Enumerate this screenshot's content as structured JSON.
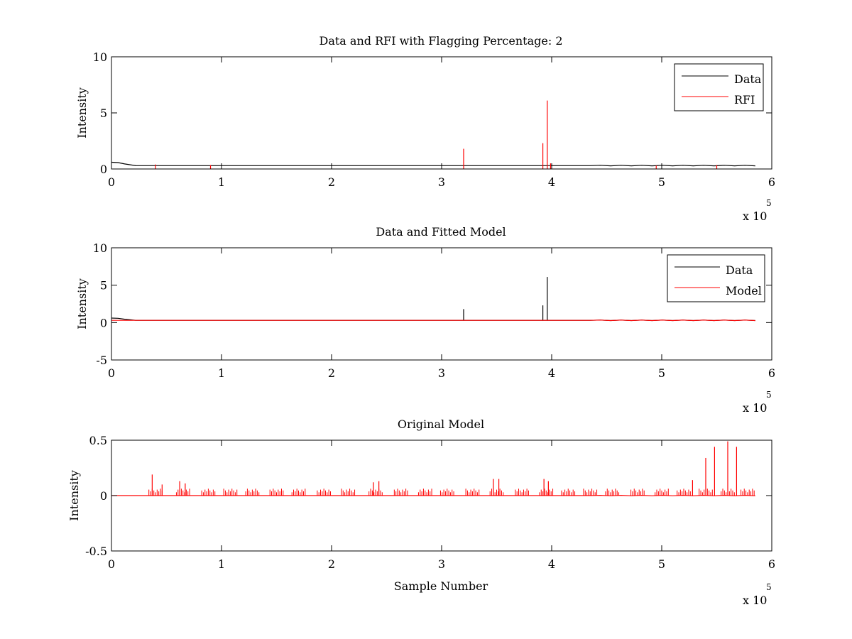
{
  "chart_data": [
    {
      "type": "line",
      "title": "Data and RFI with Flagging Percentage: 2",
      "xlabel": "",
      "ylabel": "Intensity",
      "xlim": [
        0,
        600000
      ],
      "ylim": [
        0,
        10
      ],
      "xticks": [
        "0",
        "1",
        "2",
        "3",
        "4",
        "5",
        "6"
      ],
      "yticks": [
        "0",
        "5",
        "10"
      ],
      "x_multiplier": {
        "base": "x 10",
        "exponent": "5"
      },
      "legend": {
        "position": "top-right",
        "entries": [
          "Data",
          "RFI"
        ]
      },
      "colors": {
        "Data": "#000000",
        "RFI": "#ff0000"
      },
      "grid": false,
      "series": [
        {
          "name": "Data",
          "baseline": 0.3,
          "start_level": 0.6,
          "x_end": 585000
        },
        {
          "name": "RFI",
          "spikes": [
            {
              "x": 40000,
              "y": 0.4
            },
            {
              "x": 90000,
              "y": 0.35
            },
            {
              "x": 320000,
              "y": 1.8
            },
            {
              "x": 392000,
              "y": 2.3
            },
            {
              "x": 396000,
              "y": 6.1
            },
            {
              "x": 399000,
              "y": 0.5
            },
            {
              "x": 495000,
              "y": 0.3
            },
            {
              "x": 550000,
              "y": 0.35
            }
          ]
        }
      ]
    },
    {
      "type": "line",
      "title": "Data and Fitted Model",
      "xlabel": "",
      "ylabel": "Intensity",
      "xlim": [
        0,
        600000
      ],
      "ylim": [
        -5,
        10
      ],
      "xticks": [
        "0",
        "1",
        "2",
        "3",
        "4",
        "5",
        "6"
      ],
      "yticks": [
        "-5",
        "0",
        "5",
        "10"
      ],
      "x_multiplier": {
        "base": "x 10",
        "exponent": "5"
      },
      "legend": {
        "position": "top-right",
        "entries": [
          "Data",
          "Model"
        ]
      },
      "colors": {
        "Data": "#000000",
        "Model": "#ff0000"
      },
      "grid": false,
      "series": [
        {
          "name": "Data",
          "baseline": 0.3,
          "start_level": 0.6,
          "x_end": 585000,
          "spikes": [
            {
              "x": 320000,
              "y": 1.8
            },
            {
              "x": 392000,
              "y": 2.3
            },
            {
              "x": 396000,
              "y": 6.1
            }
          ]
        },
        {
          "name": "Model",
          "baseline": 0.3,
          "x_end": 585000
        }
      ]
    },
    {
      "type": "line",
      "title": "Original Model",
      "xlabel": "Sample Number",
      "ylabel": "Intensity",
      "xlim": [
        0,
        600000
      ],
      "ylim": [
        -0.5,
        0.5
      ],
      "xticks": [
        "0",
        "1",
        "2",
        "3",
        "4",
        "5",
        "6"
      ],
      "yticks": [
        "-0.5",
        "0",
        "0.5"
      ],
      "x_multiplier": {
        "base": "x 10",
        "exponent": "5"
      },
      "colors": {
        "Model": "#ff0000"
      },
      "grid": false,
      "series": [
        {
          "name": "",
          "baseline": 0.0,
          "x_end": 585000,
          "cluster_centers": [
            40000,
            65000,
            88000,
            108000,
            128000,
            150000,
            170000,
            193000,
            215000,
            240000,
            263000,
            285000,
            305000,
            328000,
            350000,
            373000,
            395000,
            415000,
            435000,
            455000,
            478000,
            500000,
            520000,
            540000,
            560000,
            578000
          ],
          "spikes": [
            {
              "x": 37000,
              "y": 0.19
            },
            {
              "x": 46000,
              "y": 0.1
            },
            {
              "x": 62000,
              "y": 0.13
            },
            {
              "x": 67000,
              "y": 0.11
            },
            {
              "x": 238000,
              "y": 0.12
            },
            {
              "x": 243000,
              "y": 0.13
            },
            {
              "x": 347000,
              "y": 0.15
            },
            {
              "x": 352000,
              "y": 0.15
            },
            {
              "x": 393000,
              "y": 0.15
            },
            {
              "x": 397000,
              "y": 0.13
            },
            {
              "x": 528000,
              "y": 0.14
            },
            {
              "x": 540000,
              "y": 0.34
            },
            {
              "x": 548000,
              "y": 0.44
            },
            {
              "x": 560000,
              "y": 0.49
            },
            {
              "x": 568000,
              "y": 0.44
            }
          ]
        }
      ]
    }
  ]
}
